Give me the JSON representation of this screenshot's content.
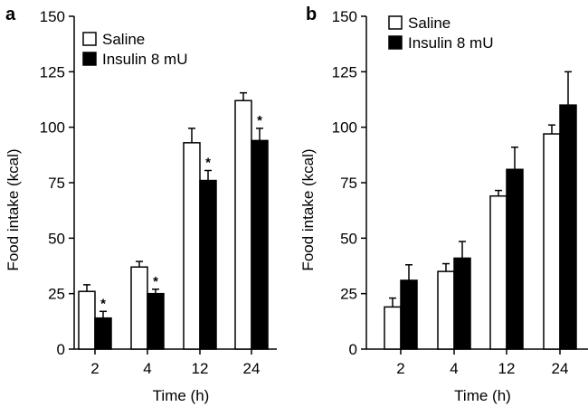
{
  "chart_data": [
    {
      "type": "bar",
      "panel_label": "a",
      "categories": [
        "2",
        "4",
        "12",
        "24"
      ],
      "series": [
        {
          "name": "Saline",
          "color": "#ffffff",
          "values": [
            26,
            37,
            93,
            112
          ],
          "errors": [
            3,
            2.5,
            6.5,
            3.5
          ],
          "significant": [
            false,
            false,
            false,
            false
          ]
        },
        {
          "name": "Insulin 8 mU",
          "color": "#000000",
          "values": [
            14,
            25,
            76,
            94
          ],
          "errors": [
            3,
            2,
            4.5,
            5.5
          ],
          "significant": [
            true,
            true,
            true,
            true
          ]
        }
      ],
      "significance_label": "*",
      "xlabel": "Time (h)",
      "ylabel": "Food intake (kcal)",
      "ylim": [
        0,
        150
      ],
      "yticks": [
        "0",
        "25",
        "50",
        "75",
        "100",
        "125",
        "150"
      ],
      "legend": "top-left",
      "grid": false
    },
    {
      "type": "bar",
      "panel_label": "b",
      "categories": [
        "2",
        "4",
        "12",
        "24"
      ],
      "series": [
        {
          "name": "Saline",
          "color": "#ffffff",
          "values": [
            19,
            35,
            69,
            97
          ],
          "errors": [
            4,
            3.5,
            2.5,
            4
          ],
          "significant": [
            false,
            false,
            false,
            false
          ]
        },
        {
          "name": "Insulin 8 mU",
          "color": "#000000",
          "values": [
            31,
            41,
            81,
            110
          ],
          "errors": [
            7,
            7.5,
            10,
            15
          ],
          "significant": [
            false,
            false,
            false,
            false
          ]
        }
      ],
      "significance_label": "*",
      "xlabel": "Time (h)",
      "ylabel": "Food intake (kcal)",
      "ylim": [
        0,
        150
      ],
      "yticks": [
        "0",
        "25",
        "50",
        "75",
        "100",
        "125",
        "150"
      ],
      "legend": "top-left",
      "grid": false
    }
  ]
}
